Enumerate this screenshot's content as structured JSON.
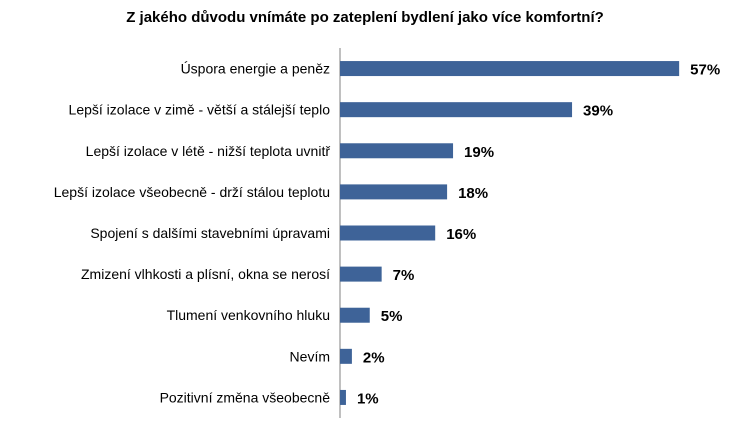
{
  "chart_data": {
    "type": "bar",
    "orientation": "horizontal",
    "title": "Z jakého důvodu vnímáte po zateplení bydlení jako více komfortní?",
    "categories": [
      "Úspora energie a peněz",
      "Lepší izolace v zimě - větší a stálejší teplo",
      "Lepší izolace v létě - nižší teplota uvnitř",
      "Lepší izolace všeobecně - drží stálou teplotu",
      "Spojení s dalšími stavebními úpravami",
      "Zmizení vlhkosti a plísní, okna se nerosí",
      "Tlumení venkovního hluku",
      "Nevím",
      "Pozitivní změna všeobecně"
    ],
    "values": [
      57,
      39,
      19,
      18,
      16,
      7,
      5,
      2,
      1
    ],
    "value_labels": [
      "57%",
      "39%",
      "19%",
      "18%",
      "16%",
      "7%",
      "5%",
      "2%",
      "1%"
    ],
    "unit": "%",
    "bar_color": "#3E6398",
    "grid": false,
    "legend": "none"
  }
}
